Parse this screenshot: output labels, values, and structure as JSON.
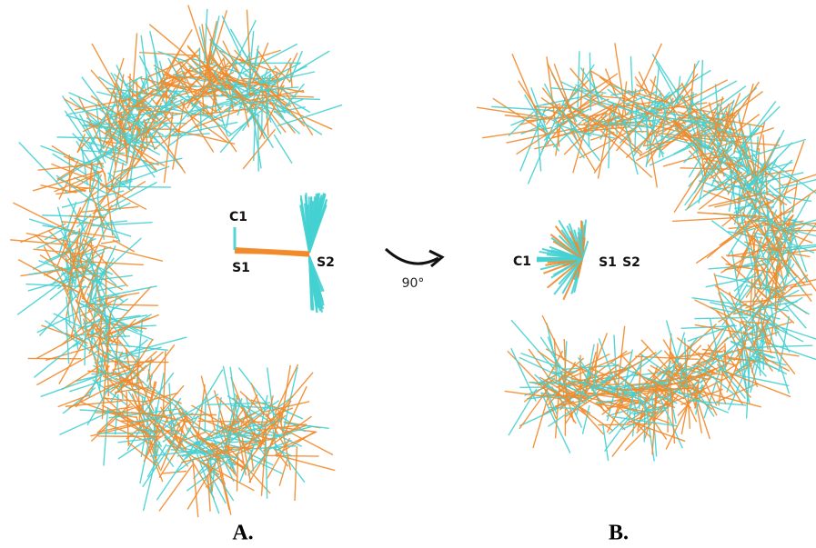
{
  "panels": [
    {
      "label": "A.",
      "annotations": [
        "C1",
        "S1",
        "S2"
      ]
    },
    {
      "label": "B.",
      "annotations": [
        "C1",
        "S1",
        "S2"
      ]
    }
  ],
  "rotation": "90°"
}
